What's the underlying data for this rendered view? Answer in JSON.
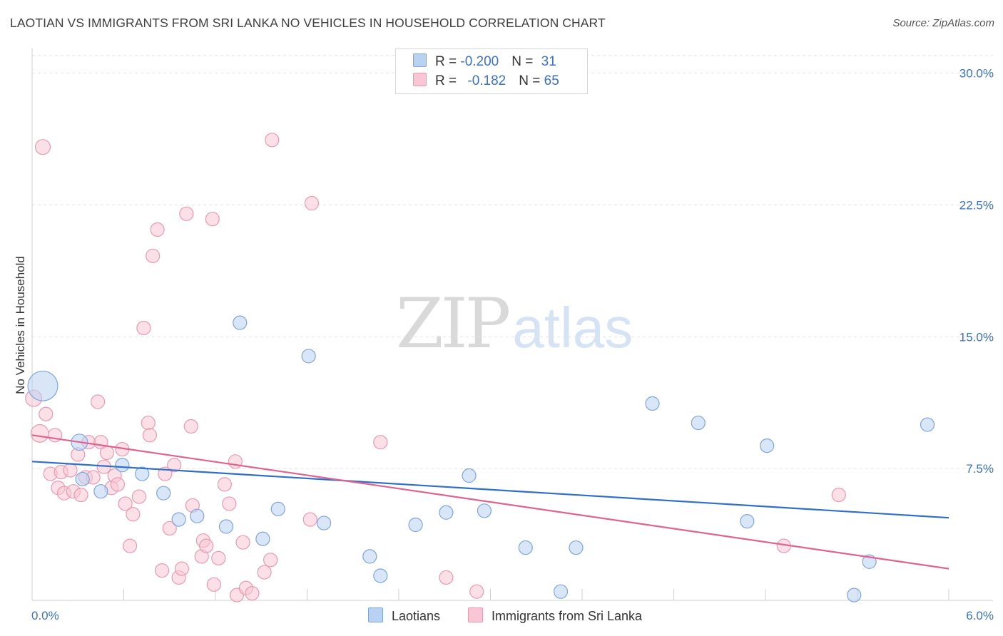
{
  "title": "LAOTIAN VS IMMIGRANTS FROM SRI LANKA NO VEHICLES IN HOUSEHOLD CORRELATION CHART",
  "source": "Source: ZipAtlas.com",
  "watermark": {
    "zip": "ZIP",
    "atlas": "atlas"
  },
  "legend": {
    "rows": [
      {
        "r_label": "R = ",
        "r_value": "-0.200",
        "n_label": "N = ",
        "n_value": "31"
      },
      {
        "r_label": "R = ",
        "r_value": "-0.182",
        "n_label": "N = ",
        "n_value": "65"
      }
    ]
  },
  "bottom_legend": {
    "laotians": "Laotians",
    "sri_lanka": "Immigrants from Sri Lanka"
  },
  "colors": {
    "laotians_fill": "#b9d2f2",
    "laotians_stroke": "#7ea6dc",
    "laotians_line": "#2f6fca",
    "sri_fill": "#f8c6d4",
    "sri_stroke": "#e99ab2",
    "sri_line": "#e0628f",
    "grid": "#e2e2e2",
    "tick_text": "#3a72c4"
  },
  "chart_data": {
    "type": "scatter",
    "title": "LAOTIAN VS IMMIGRANTS FROM SRI LANKA NO VEHICLES IN HOUSEHOLD CORRELATION CHART",
    "xlabel": "",
    "ylabel": "No Vehicles in Household",
    "xlim": [
      0,
      6.0
    ],
    "ylim": [
      0,
      31.0
    ],
    "x_ticks": [
      "0.0%",
      "6.0%"
    ],
    "y_ticks": [
      {
        "value": 7.5,
        "label": "7.5%"
      },
      {
        "value": 15.0,
        "label": "15.0%"
      },
      {
        "value": 22.5,
        "label": "22.5%"
      },
      {
        "value": 30.0,
        "label": "30.0%"
      }
    ],
    "grid": true,
    "legend_placement": "top-center",
    "series": [
      {
        "name": "Laotians",
        "r": -0.2,
        "n": 31,
        "trend": [
          [
            0.0,
            7.9
          ],
          [
            6.0,
            4.7
          ]
        ],
        "points": [
          {
            "x": 0.07,
            "y": 12.2,
            "s": 2.2
          },
          {
            "x": 0.31,
            "y": 9.0,
            "s": 1.2
          },
          {
            "x": 0.33,
            "y": 6.9,
            "s": 1
          },
          {
            "x": 0.45,
            "y": 6.2,
            "s": 1
          },
          {
            "x": 0.59,
            "y": 7.7,
            "s": 1
          },
          {
            "x": 0.72,
            "y": 7.2,
            "s": 1
          },
          {
            "x": 0.86,
            "y": 6.1,
            "s": 1
          },
          {
            "x": 0.96,
            "y": 4.6,
            "s": 1
          },
          {
            "x": 1.08,
            "y": 4.8,
            "s": 1
          },
          {
            "x": 1.27,
            "y": 4.2,
            "s": 1
          },
          {
            "x": 1.36,
            "y": 15.8,
            "s": 1
          },
          {
            "x": 1.51,
            "y": 3.5,
            "s": 1
          },
          {
            "x": 1.61,
            "y": 5.2,
            "s": 1
          },
          {
            "x": 1.81,
            "y": 13.9,
            "s": 1
          },
          {
            "x": 1.91,
            "y": 4.4,
            "s": 1
          },
          {
            "x": 2.21,
            "y": 2.5,
            "s": 1
          },
          {
            "x": 2.28,
            "y": 1.4,
            "s": 1
          },
          {
            "x": 2.51,
            "y": 4.3,
            "s": 1
          },
          {
            "x": 2.71,
            "y": 5.0,
            "s": 1
          },
          {
            "x": 2.86,
            "y": 7.1,
            "s": 1
          },
          {
            "x": 2.96,
            "y": 5.1,
            "s": 1
          },
          {
            "x": 3.23,
            "y": 3.0,
            "s": 1
          },
          {
            "x": 3.46,
            "y": 0.5,
            "s": 1
          },
          {
            "x": 3.56,
            "y": 3.0,
            "s": 1
          },
          {
            "x": 4.06,
            "y": 11.2,
            "s": 1
          },
          {
            "x": 4.36,
            "y": 10.1,
            "s": 1
          },
          {
            "x": 4.68,
            "y": 4.5,
            "s": 1
          },
          {
            "x": 4.81,
            "y": 8.8,
            "s": 1
          },
          {
            "x": 5.38,
            "y": 0.3,
            "s": 1
          },
          {
            "x": 5.48,
            "y": 2.2,
            "s": 1
          },
          {
            "x": 5.86,
            "y": 10.0,
            "s": 1
          }
        ]
      },
      {
        "name": "Immigrants from Sri Lanka",
        "r": -0.182,
        "n": 65,
        "trend": [
          [
            0.0,
            9.4
          ],
          [
            6.0,
            1.8
          ]
        ],
        "points": [
          {
            "x": 0.01,
            "y": 11.5,
            "s": 1.2
          },
          {
            "x": 0.05,
            "y": 9.5,
            "s": 1.3
          },
          {
            "x": 0.07,
            "y": 25.8,
            "s": 1.1
          },
          {
            "x": 0.09,
            "y": 10.6,
            "s": 1
          },
          {
            "x": 0.12,
            "y": 7.2,
            "s": 1
          },
          {
            "x": 0.15,
            "y": 9.4,
            "s": 1
          },
          {
            "x": 0.17,
            "y": 6.4,
            "s": 1
          },
          {
            "x": 0.19,
            "y": 7.3,
            "s": 1
          },
          {
            "x": 0.21,
            "y": 6.1,
            "s": 1
          },
          {
            "x": 0.25,
            "y": 7.4,
            "s": 1
          },
          {
            "x": 0.27,
            "y": 6.2,
            "s": 1
          },
          {
            "x": 0.3,
            "y": 8.3,
            "s": 1
          },
          {
            "x": 0.32,
            "y": 6.0,
            "s": 1
          },
          {
            "x": 0.35,
            "y": 7.0,
            "s": 1
          },
          {
            "x": 0.37,
            "y": 9.0,
            "s": 1
          },
          {
            "x": 0.4,
            "y": 7.0,
            "s": 1
          },
          {
            "x": 0.43,
            "y": 11.3,
            "s": 1
          },
          {
            "x": 0.45,
            "y": 9.0,
            "s": 1
          },
          {
            "x": 0.47,
            "y": 7.6,
            "s": 1
          },
          {
            "x": 0.49,
            "y": 8.4,
            "s": 1
          },
          {
            "x": 0.52,
            "y": 6.4,
            "s": 1
          },
          {
            "x": 0.54,
            "y": 7.1,
            "s": 1
          },
          {
            "x": 0.56,
            "y": 6.6,
            "s": 1
          },
          {
            "x": 0.59,
            "y": 8.6,
            "s": 1
          },
          {
            "x": 0.61,
            "y": 5.5,
            "s": 1
          },
          {
            "x": 0.64,
            "y": 3.1,
            "s": 1
          },
          {
            "x": 0.66,
            "y": 4.9,
            "s": 1
          },
          {
            "x": 0.7,
            "y": 5.9,
            "s": 1
          },
          {
            "x": 0.73,
            "y": 15.5,
            "s": 1
          },
          {
            "x": 0.76,
            "y": 10.1,
            "s": 1
          },
          {
            "x": 0.77,
            "y": 9.4,
            "s": 1
          },
          {
            "x": 0.79,
            "y": 19.6,
            "s": 1
          },
          {
            "x": 0.82,
            "y": 21.1,
            "s": 1
          },
          {
            "x": 0.85,
            "y": 1.7,
            "s": 1
          },
          {
            "x": 0.87,
            "y": 7.2,
            "s": 1
          },
          {
            "x": 0.9,
            "y": 4.1,
            "s": 1
          },
          {
            "x": 0.93,
            "y": 7.7,
            "s": 1
          },
          {
            "x": 0.96,
            "y": 1.3,
            "s": 1
          },
          {
            "x": 0.98,
            "y": 1.8,
            "s": 1
          },
          {
            "x": 1.01,
            "y": 22.0,
            "s": 1
          },
          {
            "x": 1.04,
            "y": 9.9,
            "s": 1
          },
          {
            "x": 1.05,
            "y": 5.4,
            "s": 1
          },
          {
            "x": 1.11,
            "y": 2.5,
            "s": 1
          },
          {
            "x": 1.12,
            "y": 3.4,
            "s": 1
          },
          {
            "x": 1.14,
            "y": 3.1,
            "s": 1
          },
          {
            "x": 1.18,
            "y": 21.7,
            "s": 1
          },
          {
            "x": 1.19,
            "y": 0.9,
            "s": 1
          },
          {
            "x": 1.22,
            "y": 2.4,
            "s": 1
          },
          {
            "x": 1.26,
            "y": 6.6,
            "s": 1
          },
          {
            "x": 1.29,
            "y": 5.5,
            "s": 1
          },
          {
            "x": 1.33,
            "y": 7.9,
            "s": 1
          },
          {
            "x": 1.34,
            "y": 0.3,
            "s": 1
          },
          {
            "x": 1.38,
            "y": 3.3,
            "s": 1
          },
          {
            "x": 1.4,
            "y": 0.7,
            "s": 1
          },
          {
            "x": 1.44,
            "y": 0.4,
            "s": 1
          },
          {
            "x": 1.52,
            "y": 1.6,
            "s": 1
          },
          {
            "x": 1.56,
            "y": 2.3,
            "s": 1
          },
          {
            "x": 1.57,
            "y": 26.2,
            "s": 1
          },
          {
            "x": 1.82,
            "y": 4.6,
            "s": 1
          },
          {
            "x": 1.83,
            "y": 22.6,
            "s": 1
          },
          {
            "x": 2.28,
            "y": 9.0,
            "s": 1
          },
          {
            "x": 2.71,
            "y": 1.3,
            "s": 1
          },
          {
            "x": 2.91,
            "y": 0.5,
            "s": 1
          },
          {
            "x": 4.92,
            "y": 3.1,
            "s": 1
          },
          {
            "x": 5.28,
            "y": 6.0,
            "s": 1
          }
        ]
      }
    ]
  }
}
